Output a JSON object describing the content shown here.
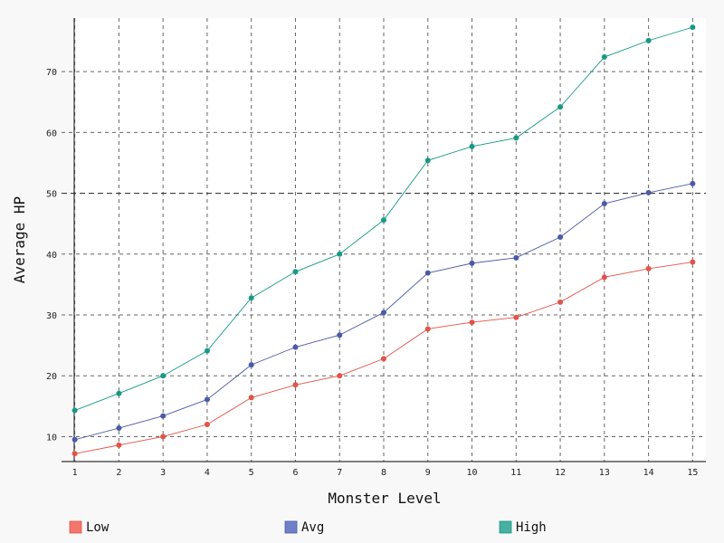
{
  "chart_data": {
    "type": "line",
    "xlabel": "Monster Level",
    "ylabel": "Average HP",
    "x": [
      1,
      2,
      3,
      4,
      5,
      6,
      7,
      8,
      9,
      10,
      11,
      12,
      13,
      14,
      15
    ],
    "xlim": [
      0.7,
      15.3
    ],
    "ylim": [
      5.9,
      78.8
    ],
    "yticks": [
      10,
      20,
      30,
      40,
      50,
      60,
      70
    ],
    "grid": true,
    "grid_color": "#666666",
    "reference_line": {
      "y": 50,
      "color": "#222222"
    },
    "legend_position": "bottom",
    "series": [
      {
        "name": "Low",
        "color": "#e45248",
        "legend_color": "#f2766e",
        "values": [
          7.2,
          8.6,
          10.0,
          12.0,
          16.4,
          18.5,
          20.0,
          22.8,
          27.7,
          28.8,
          29.6,
          32.1,
          36.2,
          37.6,
          38.7
        ]
      },
      {
        "name": "Avg",
        "color": "#4a5aa8",
        "legend_color": "#7080c8",
        "values": [
          9.5,
          11.4,
          13.4,
          16.1,
          21.8,
          24.7,
          26.7,
          30.4,
          36.9,
          38.5,
          39.4,
          42.8,
          48.3,
          50.1,
          51.6
        ]
      },
      {
        "name": "High",
        "color": "#169a86",
        "legend_color": "#46b0a2",
        "values": [
          14.3,
          17.1,
          20.0,
          24.1,
          32.8,
          37.1,
          40.0,
          45.6,
          55.4,
          57.7,
          59.1,
          64.2,
          72.4,
          75.1,
          77.3
        ]
      }
    ]
  }
}
